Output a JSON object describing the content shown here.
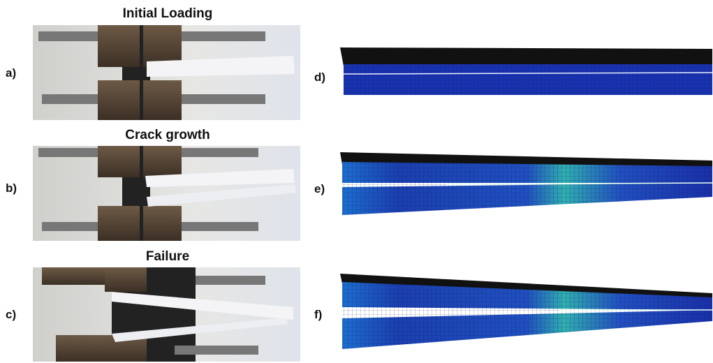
{
  "photos": [
    {
      "label": "a)",
      "title": "Initial Loading"
    },
    {
      "label": "b)",
      "title": "Crack growth"
    },
    {
      "label": "c)",
      "title": "Failure"
    }
  ],
  "simulations": [
    {
      "label": "d)"
    },
    {
      "label": "e)"
    },
    {
      "label": "f)"
    }
  ]
}
